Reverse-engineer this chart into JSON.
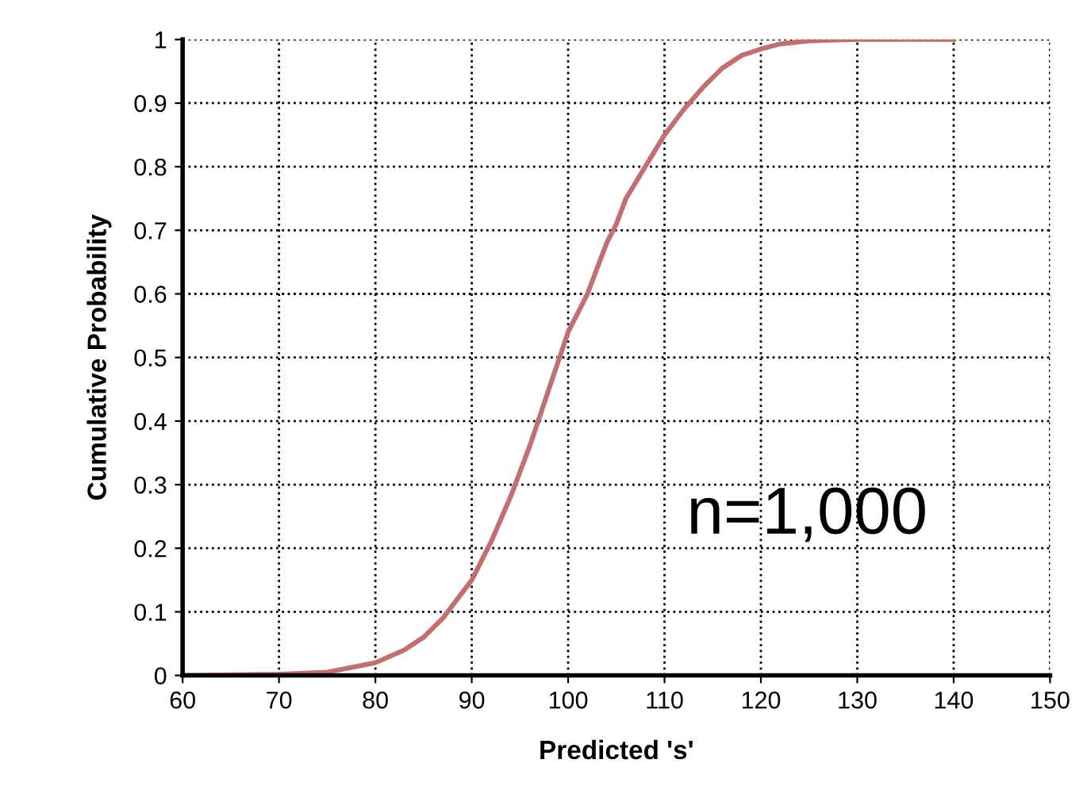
{
  "chart_data": {
    "type": "line",
    "xlabel": "Predicted 's'",
    "ylabel": "Cumulative Probability",
    "annotations": [
      "n=1,000"
    ],
    "x": [
      60,
      70,
      75,
      80,
      83,
      85,
      87,
      89,
      90,
      92,
      94,
      95,
      96,
      98,
      100,
      102,
      104,
      105,
      106,
      108,
      110,
      112,
      114,
      116,
      118,
      120,
      122,
      125,
      130,
      140
    ],
    "series": [
      {
        "color": "#c07070",
        "values": [
          0,
          0.002,
          0.005,
          0.02,
          0.04,
          0.06,
          0.09,
          0.13,
          0.15,
          0.21,
          0.28,
          0.32,
          0.36,
          0.45,
          0.54,
          0.6,
          0.68,
          0.71,
          0.75,
          0.8,
          0.85,
          0.89,
          0.925,
          0.955,
          0.975,
          0.985,
          0.993,
          0.998,
          1,
          1
        ]
      }
    ],
    "xlim": [
      60,
      150
    ],
    "ylim": [
      0,
      1
    ],
    "xticks": [
      60,
      70,
      80,
      90,
      100,
      110,
      120,
      130,
      140,
      150
    ],
    "yticks": [
      0,
      0.1,
      0.2,
      0.3,
      0.4,
      0.5,
      0.6,
      0.7,
      0.8,
      0.9,
      1
    ],
    "grid": true,
    "marker": "none",
    "line_style": "solid"
  }
}
